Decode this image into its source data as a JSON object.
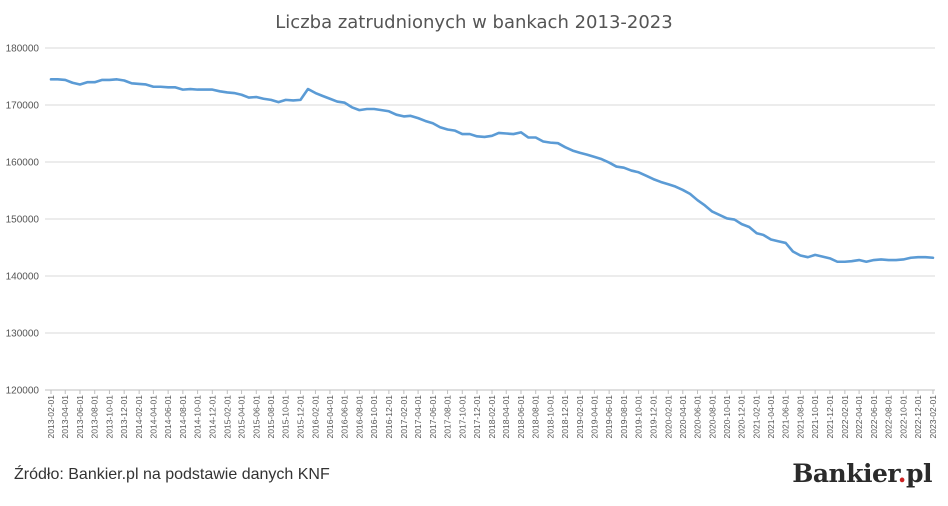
{
  "chart_data": {
    "type": "line",
    "title": "Liczba zatrudnionych w bankach 2013-2023",
    "xlabel": "",
    "ylabel": "",
    "ylim": [
      120000,
      180000
    ],
    "yticks": [
      120000,
      130000,
      140000,
      150000,
      160000,
      170000,
      180000
    ],
    "ytick_labels": [
      "120000",
      "130000",
      "140000",
      "150000",
      "160000",
      "170000",
      "180000"
    ],
    "grid": true,
    "x_ticks": [
      "2013-02-01",
      "2013-04-01",
      "2013-06-01",
      "2013-08-01",
      "2013-10-01",
      "2013-12-01",
      "2014-02-01",
      "2014-04-01",
      "2014-06-01",
      "2014-08-01",
      "2014-10-01",
      "2014-12-01",
      "2015-02-01",
      "2015-04-01",
      "2015-06-01",
      "2015-08-01",
      "2015-10-01",
      "2015-12-01",
      "2016-02-01",
      "2016-04-01",
      "2016-06-01",
      "2016-08-01",
      "2016-10-01",
      "2016-12-01",
      "2017-02-01",
      "2017-04-01",
      "2017-06-01",
      "2017-08-01",
      "2017-10-01",
      "2017-12-01",
      "2018-02-01",
      "2018-04-01",
      "2018-06-01",
      "2018-08-01",
      "2018-10-01",
      "2018-12-01",
      "2019-02-01",
      "2019-04-01",
      "2019-06-01",
      "2019-08-01",
      "2019-10-01",
      "2019-12-01",
      "2020-02-01",
      "2020-04-01",
      "2020-06-01",
      "2020-08-01",
      "2020-10-01",
      "2020-12-01",
      "2021-02-01",
      "2021-04-01",
      "2021-06-01",
      "2021-08-01",
      "2021-10-01",
      "2021-12-01",
      "2022-02-01",
      "2022-04-01",
      "2022-06-01",
      "2022-08-01",
      "2022-10-01",
      "2022-12-01",
      "2023-02-01"
    ],
    "series": [
      {
        "color": "#5b9bd5",
        "x": [
          "2013-02-01",
          "2013-03-01",
          "2013-04-01",
          "2013-05-01",
          "2013-06-01",
          "2013-07-01",
          "2013-08-01",
          "2013-09-01",
          "2013-10-01",
          "2013-11-01",
          "2013-12-01",
          "2014-01-01",
          "2014-02-01",
          "2014-03-01",
          "2014-04-01",
          "2014-05-01",
          "2014-06-01",
          "2014-07-01",
          "2014-08-01",
          "2014-09-01",
          "2014-10-01",
          "2014-11-01",
          "2014-12-01",
          "2015-01-01",
          "2015-02-01",
          "2015-03-01",
          "2015-04-01",
          "2015-05-01",
          "2015-06-01",
          "2015-07-01",
          "2015-08-01",
          "2015-09-01",
          "2015-10-01",
          "2015-11-01",
          "2015-12-01",
          "2016-01-01",
          "2016-02-01",
          "2016-03-01",
          "2016-04-01",
          "2016-05-01",
          "2016-06-01",
          "2016-07-01",
          "2016-08-01",
          "2016-09-01",
          "2016-10-01",
          "2016-11-01",
          "2016-12-01",
          "2017-01-01",
          "2017-02-01",
          "2017-03-01",
          "2017-04-01",
          "2017-05-01",
          "2017-06-01",
          "2017-07-01",
          "2017-08-01",
          "2017-09-01",
          "2017-10-01",
          "2017-11-01",
          "2017-12-01",
          "2018-01-01",
          "2018-02-01",
          "2018-03-01",
          "2018-04-01",
          "2018-05-01",
          "2018-06-01",
          "2018-07-01",
          "2018-08-01",
          "2018-09-01",
          "2018-10-01",
          "2018-11-01",
          "2018-12-01",
          "2019-01-01",
          "2019-02-01",
          "2019-03-01",
          "2019-04-01",
          "2019-05-01",
          "2019-06-01",
          "2019-07-01",
          "2019-08-01",
          "2019-09-01",
          "2019-10-01",
          "2019-11-01",
          "2019-12-01",
          "2020-01-01",
          "2020-02-01",
          "2020-03-01",
          "2020-04-01",
          "2020-05-01",
          "2020-06-01",
          "2020-07-01",
          "2020-08-01",
          "2020-09-01",
          "2020-10-01",
          "2020-11-01",
          "2020-12-01",
          "2021-01-01",
          "2021-02-01",
          "2021-03-01",
          "2021-04-01",
          "2021-05-01",
          "2021-06-01",
          "2021-07-01",
          "2021-08-01",
          "2021-09-01",
          "2021-10-01",
          "2021-11-01",
          "2021-12-01",
          "2022-01-01",
          "2022-02-01",
          "2022-03-01",
          "2022-04-01",
          "2022-05-01",
          "2022-06-01",
          "2022-07-01",
          "2022-08-01",
          "2022-09-01",
          "2022-10-01",
          "2022-11-01",
          "2022-12-01",
          "2023-01-01",
          "2023-02-01"
        ],
        "values": [
          174500,
          174500,
          174400,
          173900,
          173600,
          174000,
          174000,
          174400,
          174400,
          174500,
          174300,
          173800,
          173700,
          173600,
          173200,
          173200,
          173100,
          173100,
          172700,
          172800,
          172700,
          172700,
          172700,
          172400,
          172200,
          172100,
          171800,
          171300,
          171400,
          171100,
          170900,
          170500,
          170900,
          170800,
          170900,
          172800,
          172100,
          171600,
          171100,
          170600,
          170400,
          169600,
          169100,
          169300,
          169300,
          169100,
          168900,
          168300,
          168000,
          168100,
          167700,
          167200,
          166800,
          166100,
          165700,
          165500,
          164900,
          164900,
          164500,
          164400,
          164600,
          165100,
          165000,
          164900,
          165200,
          164300,
          164300,
          163600,
          163400,
          163300,
          162600,
          162000,
          161600,
          161300,
          160900,
          160500,
          159900,
          159200,
          159000,
          158500,
          158200,
          157600,
          157000,
          156500,
          156100,
          155700,
          155100,
          154400,
          153300,
          152400,
          151300,
          150700,
          150100,
          149900,
          149100,
          148600,
          147500,
          147200,
          146400,
          146100,
          145800,
          144300,
          143600,
          143300,
          143700,
          143400,
          143100,
          142500,
          142500,
          142600,
          142800,
          142500,
          142800,
          142900,
          142800,
          142800,
          142900,
          143200,
          143300,
          143300,
          143200
        ]
      }
    ]
  },
  "footer": {
    "source": "Źródło: Bankier.pl na podstawie danych KNF",
    "logo_main": "Bankier",
    "logo_dot": ".",
    "logo_tail": "pl"
  }
}
